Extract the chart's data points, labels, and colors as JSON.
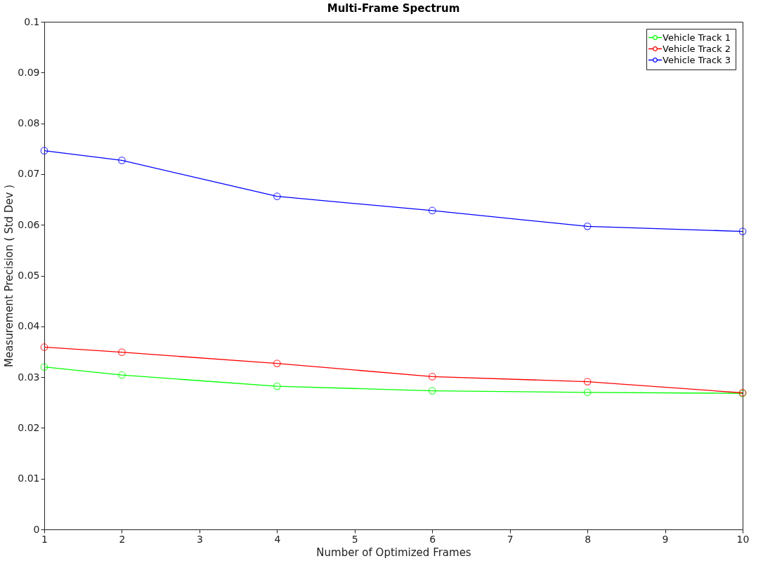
{
  "chart_data": {
    "type": "line",
    "title": "Multi-Frame Spectrum",
    "xlabel": "Number of Optimized Frames",
    "ylabel": "Measurement Precision ( Std Dev )",
    "x": [
      1,
      2,
      4,
      6,
      8,
      10
    ],
    "series": [
      {
        "name": "Vehicle Track 1",
        "color": "#00ff00",
        "values": [
          0.032,
          0.0304,
          0.0282,
          0.0273,
          0.027,
          0.0268
        ]
      },
      {
        "name": "Vehicle Track 2",
        "color": "#ff0000",
        "values": [
          0.0359,
          0.0349,
          0.0327,
          0.0301,
          0.0291,
          0.0269
        ]
      },
      {
        "name": "Vehicle Track 3",
        "color": "#0000ff",
        "values": [
          0.0746,
          0.0727,
          0.0656,
          0.0628,
          0.0597,
          0.0587
        ]
      }
    ],
    "xlim": [
      1,
      10
    ],
    "xticks": [
      1,
      2,
      3,
      4,
      5,
      6,
      7,
      8,
      9,
      10
    ],
    "ylim": [
      0,
      0.1
    ],
    "yticks": [
      0,
      0.01,
      0.02,
      0.03,
      0.04,
      0.05,
      0.06,
      0.07,
      0.08,
      0.09,
      0.1
    ],
    "grid": false,
    "legend": "top right",
    "marker": "circle",
    "line_style": "solid"
  }
}
